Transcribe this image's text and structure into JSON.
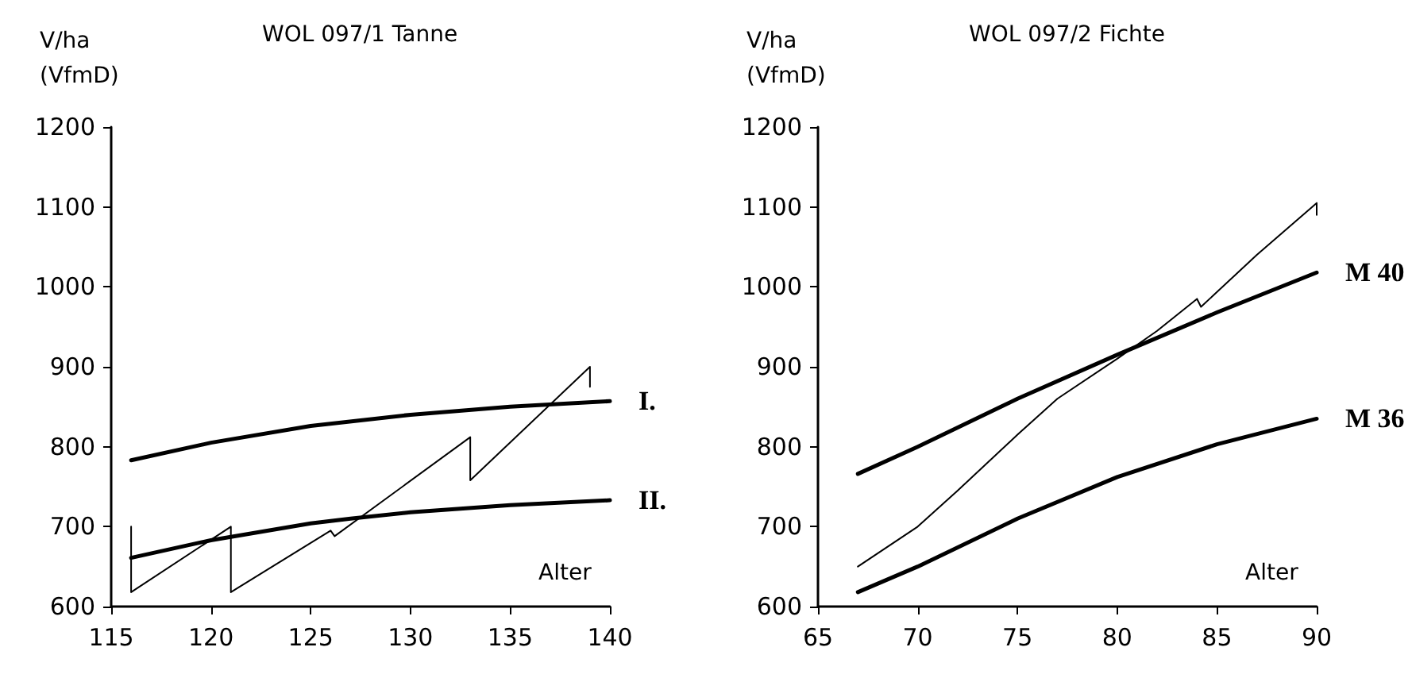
{
  "chart_data": [
    {
      "type": "line",
      "title": "WOL 097/1 Tanne",
      "xlabel": "Alter",
      "ylabel": "V/ha\n(VfmD)",
      "xlim": [
        115,
        140
      ],
      "xticks": [
        115,
        120,
        125,
        130,
        135,
        140
      ],
      "ylim": [
        600,
        1200
      ],
      "yticks": [
        600,
        700,
        800,
        900,
        1000,
        1100,
        1200
      ],
      "grid": false,
      "legend": false,
      "marker": "none",
      "line_style": "solid",
      "series": [
        {
          "name": "I.",
          "color": "#000000",
          "x": [
            116,
            120,
            125,
            130,
            135,
            140
          ],
          "values": [
            783,
            805,
            826,
            840,
            850,
            857
          ]
        },
        {
          "name": "II.",
          "color": "#000000",
          "x": [
            116,
            120,
            125,
            127,
            130,
            135,
            140
          ],
          "values": [
            661,
            683,
            704,
            710,
            718,
            727,
            733
          ]
        },
        {
          "color": "#000000",
          "x": [
            116,
            116,
            121,
            121,
            126,
            126.2,
            133,
            133,
            139,
            139
          ],
          "values": [
            700,
            618,
            700,
            618,
            695,
            688,
            812,
            758,
            900,
            875
          ]
        }
      ]
    },
    {
      "type": "line",
      "title": "WOL 097/2 Fichte",
      "xlabel": "Alter",
      "ylabel": "V/ha\n(VfmD)",
      "xlim": [
        65,
        90
      ],
      "xticks": [
        65,
        70,
        75,
        80,
        85,
        90
      ],
      "ylim": [
        600,
        1200
      ],
      "yticks": [
        600,
        700,
        800,
        900,
        1000,
        1100,
        1200
      ],
      "grid": false,
      "legend": false,
      "marker": "none",
      "line_style": "solid",
      "series": [
        {
          "name": "M 40",
          "color": "#000000",
          "x": [
            67,
            70,
            75,
            80,
            85,
            90
          ],
          "values": [
            766,
            800,
            860,
            915,
            968,
            1018
          ]
        },
        {
          "name": "M 36",
          "color": "#000000",
          "x": [
            67,
            70,
            75,
            80,
            85,
            90
          ],
          "values": [
            618,
            650,
            710,
            762,
            803,
            835
          ]
        },
        {
          "color": "#000000",
          "x": [
            67,
            70,
            72,
            75,
            77,
            80,
            82,
            84,
            84.2,
            87,
            90,
            90
          ],
          "values": [
            650,
            700,
            745,
            815,
            860,
            910,
            945,
            985,
            975,
            1040,
            1105,
            1090
          ]
        }
      ]
    }
  ]
}
